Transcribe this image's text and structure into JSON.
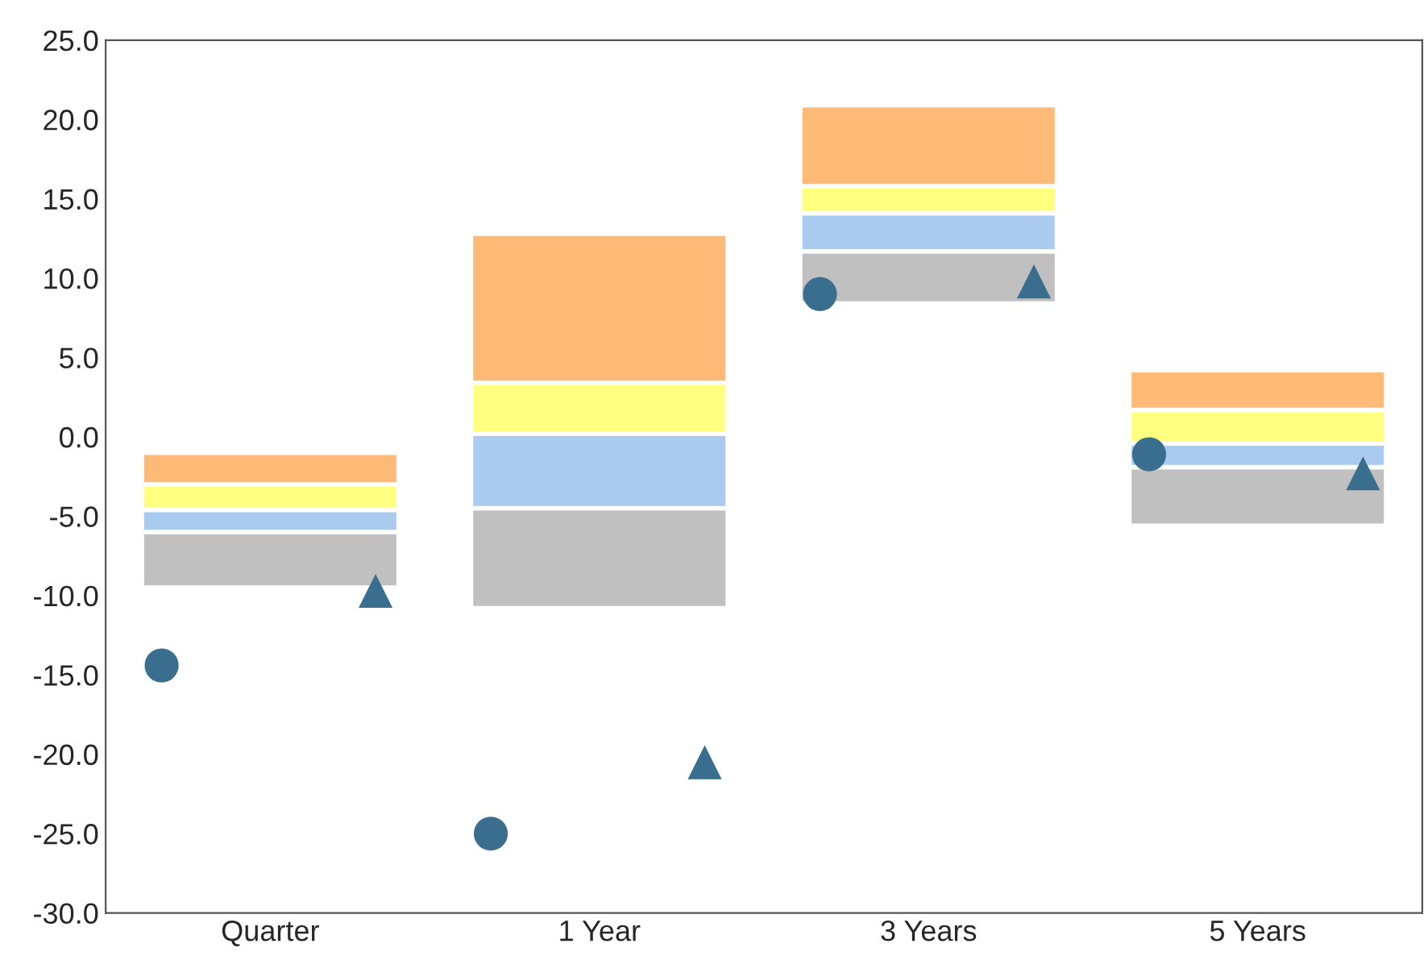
{
  "chart_data": {
    "type": "bar",
    "categories": [
      "Quarter",
      "1 Year",
      "3 Years",
      "5 Years"
    ],
    "series": [
      {
        "color": "#c0c0c0",
        "base": [
          -9.5,
          -10.8,
          8.4,
          -5.6
        ],
        "values": [
          3.5,
          6.3,
          3.3,
          3.7
        ]
      },
      {
        "color": "#a9cbef",
        "base": [
          -6.0,
          -4.5,
          11.7,
          -1.9
        ],
        "values": [
          1.4,
          4.7,
          2.4,
          1.5
        ]
      },
      {
        "color": "#ffff80",
        "base": [
          -4.6,
          0.2,
          14.1,
          -0.4
        ],
        "values": [
          1.6,
          3.2,
          1.7,
          2.1
        ]
      },
      {
        "color": "#ffba77",
        "base": [
          -3.0,
          3.4,
          15.8,
          1.7
        ],
        "values": [
          2.0,
          9.4,
          5.1,
          2.5
        ]
      },
      {
        "type": "scatter",
        "marker": "circle",
        "color": "#3a6e8f",
        "x": [
          "Quarter",
          "1 Year",
          "3 Years",
          "5 Years"
        ],
        "values": [
          -14.4,
          -25.0,
          9.0,
          -1.1
        ]
      },
      {
        "type": "scatter",
        "marker": "triangle",
        "color": "#3a6e8f",
        "x": [
          "Quarter",
          "1 Year",
          "3 Years",
          "5 Years"
        ],
        "values": [
          -9.7,
          -20.5,
          9.8,
          -2.3
        ]
      }
    ],
    "ylim": [
      -30,
      25
    ],
    "yticks": [
      {
        "value": -30,
        "label": "-30.0"
      },
      {
        "value": -25,
        "label": "-25.0"
      },
      {
        "value": -20,
        "label": "-20.0"
      },
      {
        "value": -15,
        "label": "-15.0"
      },
      {
        "value": -10,
        "label": "-10.0"
      },
      {
        "value": -5,
        "label": "-5.0"
      },
      {
        "value": 0,
        "label": "0.0"
      },
      {
        "value": 5,
        "label": "5.0"
      },
      {
        "value": 10,
        "label": "10.0"
      },
      {
        "value": 15,
        "label": "15.0"
      },
      {
        "value": 20,
        "label": "20.0"
      },
      {
        "value": 25,
        "label": "25.0"
      }
    ],
    "grid": false,
    "legend": false
  }
}
